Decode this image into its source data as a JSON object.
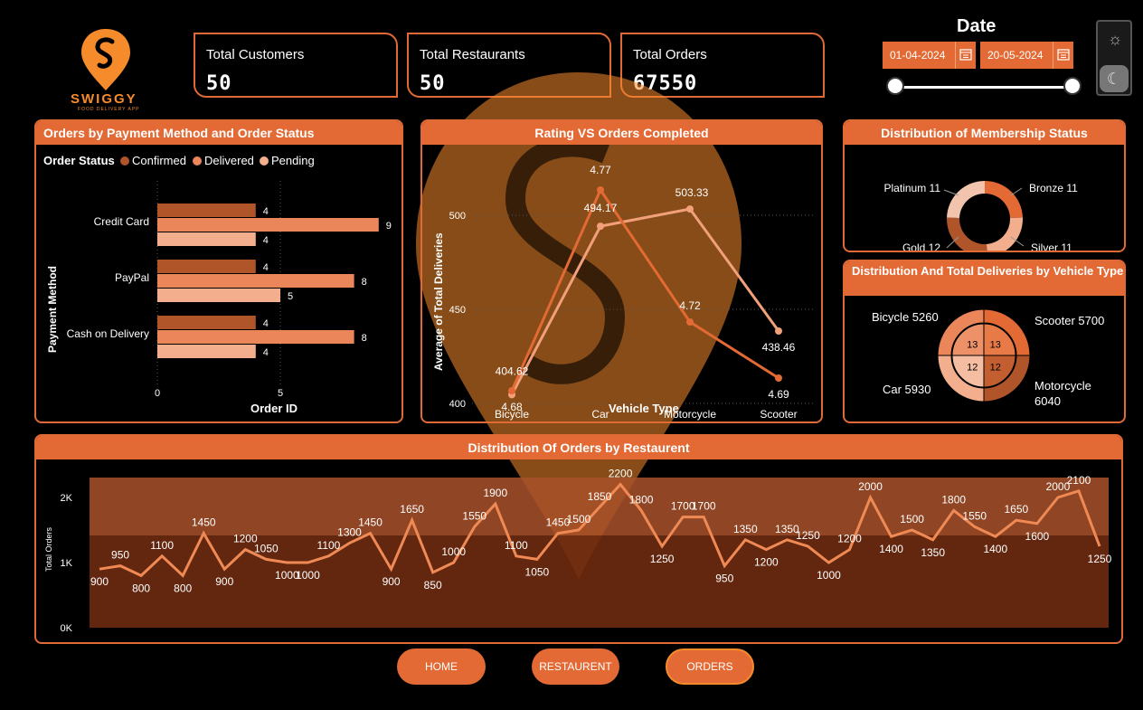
{
  "brand": {
    "name": "SWIGGY",
    "tagline": "FOOD DELIVERY APP",
    "color": "#f58b2b"
  },
  "kpis": [
    {
      "label": "Total Customers",
      "value": "50"
    },
    {
      "label": "Total Restaurants",
      "value": "50"
    },
    {
      "label": "Total Orders",
      "value": "67550"
    }
  ],
  "date_filter": {
    "title": "Date",
    "start": "01-04-2024",
    "end": "20-05-2024",
    "icon": "calendar-icon"
  },
  "theme_toggle": {
    "icons": [
      "sun-icon",
      "moon-icon"
    ]
  },
  "colors": {
    "accent": "#e36a34",
    "confirmed": "#b0542a",
    "delivered": "#ea8659",
    "pending": "#f2ae8d"
  },
  "payment_chart": {
    "title": "Orders by Payment Method and Order Status",
    "legend_title": "Order Status",
    "legend": [
      "Confirmed",
      "Delivered",
      "Pending"
    ],
    "y_title": "Payment Method",
    "x_title": "Order ID",
    "x_ticks": [
      "0",
      "5"
    ]
  },
  "rating_chart": {
    "title": "Rating VS Orders Completed",
    "y_title": "Average of Total Deliveries",
    "x_title": "Vehicle Type",
    "y_ticks": [
      "500",
      "450",
      "400"
    ]
  },
  "membership_chart": {
    "title": "Distribution of Membership Status",
    "labels": [
      "Platinum 11",
      "Bronze 11",
      "Gold 12",
      "Silver 11"
    ]
  },
  "vehicle_chart": {
    "title": "Distribution And Total Deliveries by Vehicle Type",
    "labels": [
      "Bicycle 5260",
      "Scooter 5700",
      "Car 5930",
      "Motorcycle 6040"
    ]
  },
  "restaurant_chart": {
    "title": "Distribution Of Orders by Restaurent",
    "y_title": "Total Orders",
    "y_ticks": [
      "2K",
      "1K",
      "0K"
    ]
  },
  "nav": {
    "home": "HOME",
    "restaurant": "RESTAURENT",
    "orders": "ORDERS"
  },
  "chart_data": [
    {
      "type": "bar",
      "categories": [
        "Credit Card",
        "PayPal",
        "Cash on Delivery"
      ],
      "series": [
        {
          "name": "Confirmed",
          "values": [
            4,
            4,
            4
          ]
        },
        {
          "name": "Delivered",
          "values": [
            9,
            8,
            8
          ]
        },
        {
          "name": "Pending",
          "values": [
            4,
            5,
            4
          ]
        }
      ],
      "xlabel": "Order ID",
      "ylabel": "Payment Method",
      "xlim": [
        0,
        10
      ]
    },
    {
      "type": "line",
      "categories": [
        "Bicycle",
        "Car",
        "Motorcycle",
        "Scooter"
      ],
      "series": [
        {
          "values": [
            404.62,
            494.17,
            503.33,
            438.46
          ],
          "labels": [
            "404.62",
            "494.17",
            "503.33",
            "438.46"
          ]
        },
        {
          "values": [
            4.68,
            4.77,
            4.72,
            4.69
          ],
          "labels": [
            "4.68",
            "4.77",
            "4.72",
            "4.69"
          ]
        }
      ],
      "xlabel": "Vehicle Type",
      "ylabel": "Average of Total Deliveries",
      "ylim": [
        400,
        520
      ]
    },
    {
      "type": "pie",
      "labels": [
        "Bronze",
        "Silver",
        "Gold",
        "Platinum"
      ],
      "values": [
        11,
        11,
        12,
        11
      ]
    },
    {
      "type": "pie",
      "labels": [
        "Scooter",
        "Motorcycle",
        "Car",
        "Bicycle"
      ],
      "values": [
        5700,
        6040,
        5930,
        5260
      ],
      "inner_values": [
        13,
        12,
        12,
        13
      ]
    },
    {
      "type": "line",
      "values": [
        900,
        950,
        800,
        1100,
        800,
        1450,
        900,
        1200,
        1050,
        1000,
        1000,
        1100,
        1300,
        1450,
        900,
        1650,
        850,
        1000,
        1550,
        1900,
        1100,
        1050,
        1450,
        1500,
        1850,
        2200,
        1800,
        1250,
        1700,
        1700,
        950,
        1350,
        1200,
        1350,
        1250,
        1000,
        1200,
        2000,
        1400,
        1500,
        1350,
        1800,
        1550,
        1400,
        1650,
        1600,
        2000,
        2100,
        1250
      ],
      "ylabel": "Total Orders",
      "ylim": [
        0,
        2300
      ]
    }
  ]
}
